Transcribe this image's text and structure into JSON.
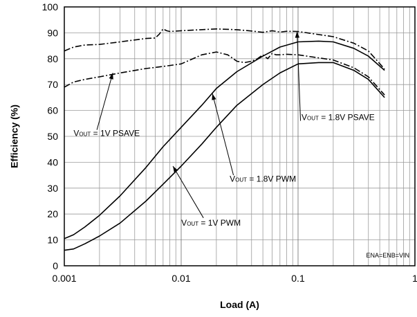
{
  "chart_data": {
    "type": "line",
    "xlabel": "Load (A)",
    "ylabel": "Efficiency (%)",
    "xscale": "log",
    "xlim": [
      0.001,
      1
    ],
    "ylim": [
      0,
      100
    ],
    "grid": true,
    "x_tick_labels": [
      "0.001",
      "0.01",
      "0.1",
      "1"
    ],
    "y_tick_labels": [
      "0",
      "10",
      "20",
      "30",
      "40",
      "50",
      "60",
      "70",
      "80",
      "90",
      "100"
    ],
    "condition_note": "ENA=ENB=VIN",
    "series": [
      {
        "label_main": "V",
        "label_sub": "OUT",
        "label_rest": " = 1.8V PSAVE",
        "style": "dashdot",
        "x": [
          0.001,
          0.0012,
          0.0015,
          0.002,
          0.003,
          0.005,
          0.006,
          0.0065,
          0.007,
          0.0075,
          0.008,
          0.01,
          0.02,
          0.03,
          0.04,
          0.05,
          0.06,
          0.07,
          0.08,
          0.1,
          0.2,
          0.3,
          0.4,
          0.55
        ],
        "y": [
          83,
          84.5,
          85.3,
          85.5,
          86.5,
          87.8,
          88,
          89.5,
          91.5,
          90.8,
          90.5,
          90.8,
          91.5,
          91.2,
          90.7,
          90.2,
          90.8,
          90.3,
          90.6,
          90.5,
          88.5,
          86,
          83,
          76
        ]
      },
      {
        "label_main": "V",
        "label_sub": "OUT",
        "label_rest": " = 1V PSAVE",
        "style": "dashdot",
        "x": [
          0.001,
          0.0012,
          0.0015,
          0.002,
          0.003,
          0.005,
          0.007,
          0.01,
          0.015,
          0.02,
          0.025,
          0.03,
          0.035,
          0.04,
          0.045,
          0.05,
          0.055,
          0.06,
          0.065,
          0.07,
          0.08,
          0.1,
          0.2,
          0.3,
          0.4,
          0.55
        ],
        "y": [
          69,
          71,
          72,
          73,
          74.5,
          76.2,
          77,
          78,
          81.5,
          82.6,
          81.5,
          79,
          78.5,
          79,
          80,
          81.5,
          80,
          82,
          81.5,
          81.5,
          81.7,
          81.5,
          79.5,
          76.5,
          73,
          66
        ]
      },
      {
        "label_main": "V",
        "label_sub": "OUT",
        "label_rest": " = 1.8V PWM",
        "style": "solid",
        "x": [
          0.001,
          0.0012,
          0.0015,
          0.002,
          0.003,
          0.005,
          0.007,
          0.01,
          0.015,
          0.02,
          0.03,
          0.05,
          0.07,
          0.1,
          0.15,
          0.2,
          0.3,
          0.4,
          0.55
        ],
        "y": [
          10.5,
          12,
          15,
          19.5,
          27,
          38,
          46,
          53.5,
          62,
          68.5,
          75,
          81,
          84.5,
          86.5,
          86.8,
          86.5,
          84,
          81,
          75.5
        ]
      },
      {
        "label_main": "V",
        "label_sub": "OUT",
        "label_rest": " = 1V PWM",
        "style": "solid",
        "x": [
          0.001,
          0.0012,
          0.0015,
          0.002,
          0.003,
          0.005,
          0.007,
          0.01,
          0.015,
          0.02,
          0.03,
          0.05,
          0.07,
          0.1,
          0.15,
          0.2,
          0.3,
          0.4,
          0.55
        ],
        "y": [
          6,
          6.5,
          8.5,
          11.5,
          16.5,
          25,
          31.5,
          38.5,
          47,
          53.5,
          62,
          70,
          74.5,
          78,
          78.5,
          78.5,
          75.5,
          72,
          65
        ]
      }
    ],
    "annotations": [
      {
        "series": 0,
        "text_x": 0.22,
        "text_y": 56.3,
        "anchor": "middle",
        "arrow_from": [
          0.105,
          56
        ],
        "arrow_to": [
          0.098,
          90.5
        ]
      },
      {
        "series": 1,
        "text_x": 0.0012,
        "text_y": 50.2,
        "anchor": "start",
        "arrow_from": [
          0.0019,
          52.5
        ],
        "arrow_to": [
          0.0026,
          74.5
        ]
      },
      {
        "series": 2,
        "text_x": 0.05,
        "text_y": 32.5,
        "anchor": "middle",
        "arrow_from": [
          0.028,
          35
        ],
        "arrow_to": [
          0.0185,
          66.5
        ]
      },
      {
        "series": 3,
        "text_x": 0.018,
        "text_y": 15.5,
        "anchor": "middle",
        "arrow_from": [
          0.0155,
          18.5
        ],
        "arrow_to": [
          0.0085,
          38.5
        ]
      }
    ]
  }
}
